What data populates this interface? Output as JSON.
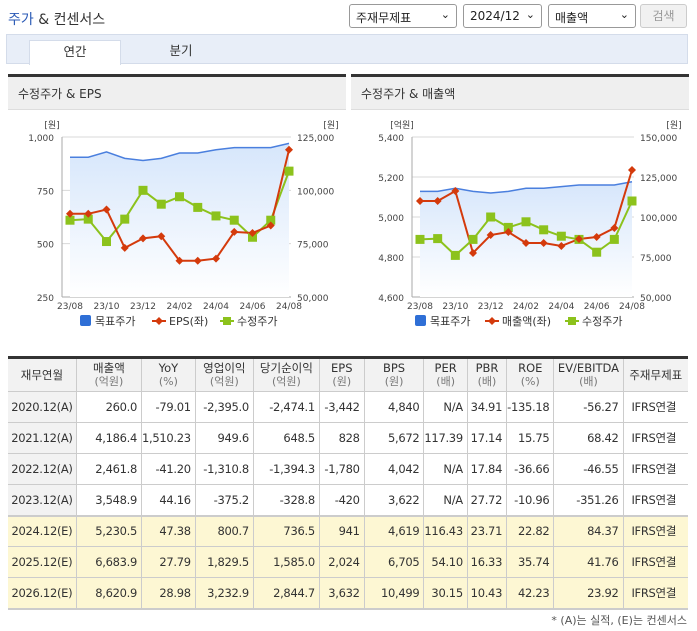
{
  "header": {
    "title_a": "주가",
    "title_b": " & 컨센서스",
    "select1": "주재무제표",
    "select2": "2024/12",
    "select3": "매출액",
    "search": "검색"
  },
  "tabs": [
    {
      "label": "연간",
      "active": true
    },
    {
      "label": "분기",
      "active": false
    }
  ],
  "colors": {
    "target": "#2f6fd6",
    "red": "#d43a0c",
    "green": "#8cc21c",
    "accent": "#2a59b5",
    "estimate_row": "#fdf7d3"
  },
  "chart_data": [
    {
      "type": "line",
      "title": "수정주가 & EPS",
      "x": [
        "23/08",
        "23/09",
        "23/10",
        "23/11",
        "23/12",
        "24/01",
        "24/02",
        "24/03",
        "24/04",
        "24/05",
        "24/06",
        "24/07",
        "24/08"
      ],
      "x_tick_labels": [
        "23/08",
        "23/10",
        "23/12",
        "24/02",
        "24/04",
        "24/06",
        "24/08"
      ],
      "left_unit": "[원]",
      "right_unit": "[원]",
      "ylim_left": [
        250,
        1000
      ],
      "yticks_left": [
        "1,000",
        "750",
        "500",
        "250"
      ],
      "ylim_right": [
        50000,
        125000
      ],
      "yticks_right": [
        "125,000",
        "100,000",
        "75,000",
        "50,000"
      ],
      "grid": true,
      "legend": "bottom",
      "series": [
        {
          "name": "목표주가",
          "axis": "right",
          "type": "area",
          "values": [
            115500,
            115500,
            118000,
            115000,
            114000,
            115000,
            117500,
            117500,
            119000,
            120000,
            120000,
            120000,
            122000
          ]
        },
        {
          "name": "EPS(좌)",
          "axis": "left",
          "values": [
            640,
            640,
            660,
            480,
            525,
            535,
            420,
            420,
            430,
            555,
            550,
            585,
            940
          ]
        },
        {
          "name": "수정주가",
          "axis": "right",
          "values": [
            86000,
            86500,
            76000,
            86500,
            100000,
            93500,
            97000,
            92000,
            88000,
            86000,
            78000,
            86000,
            109000
          ]
        }
      ]
    },
    {
      "type": "line",
      "title": "수정주가 & 매출액",
      "x": [
        "23/08",
        "23/09",
        "23/10",
        "23/11",
        "23/12",
        "24/01",
        "24/02",
        "24/03",
        "24/04",
        "24/05",
        "24/06",
        "24/07",
        "24/08"
      ],
      "x_tick_labels": [
        "23/08",
        "23/10",
        "23/12",
        "24/02",
        "24/04",
        "24/06",
        "24/08"
      ],
      "left_unit": "[억원]",
      "right_unit": "[원]",
      "ylim_left": [
        4600,
        5400
      ],
      "yticks_left": [
        "5,400",
        "5,200",
        "5,000",
        "4,800",
        "4,600"
      ],
      "ylim_right": [
        50000,
        150000
      ],
      "yticks_right": [
        "150,000",
        "125,000",
        "100,000",
        "75,000",
        "50,000"
      ],
      "grid": true,
      "legend": "bottom",
      "series": [
        {
          "name": "목표주가",
          "axis": "right",
          "type": "area",
          "values": [
            116000,
            116000,
            118000,
            116000,
            115000,
            116000,
            118000,
            118000,
            119000,
            120000,
            120000,
            120000,
            122000
          ]
        },
        {
          "name": "매출액(좌)",
          "axis": "left",
          "values": [
            5080,
            5080,
            5130,
            4820,
            4910,
            4925,
            4870,
            4870,
            4855,
            4890,
            4900,
            4945,
            5235
          ]
        },
        {
          "name": "수정주가",
          "axis": "right",
          "values": [
            86000,
            86500,
            76000,
            86000,
            100000,
            93500,
            97000,
            92000,
            88000,
            86000,
            78000,
            86000,
            110000
          ]
        }
      ]
    }
  ],
  "table": {
    "headers": [
      [
        "재무연월",
        ""
      ],
      [
        "매출액",
        "(억원)"
      ],
      [
        "YoY",
        "(%)"
      ],
      [
        "영업이익",
        "(억원)"
      ],
      [
        "당기순이익",
        "(억원)"
      ],
      [
        "EPS",
        "(원)"
      ],
      [
        "BPS",
        "(원)"
      ],
      [
        "PER",
        "(배)"
      ],
      [
        "PBR",
        "(배)"
      ],
      [
        "ROE",
        "(%)"
      ],
      [
        "EV/EBITDA",
        "(배)"
      ],
      [
        "주재무제표",
        ""
      ]
    ],
    "rows": [
      [
        "2020.12(A)",
        "260.0",
        "-79.01",
        "-2,395.0",
        "-2,474.1",
        "-3,442",
        "4,840",
        "N/A",
        "34.91",
        "-135.18",
        "-56.27",
        "IFRS연결"
      ],
      [
        "2021.12(A)",
        "4,186.4",
        "1,510.23",
        "949.6",
        "648.5",
        "828",
        "5,672",
        "117.39",
        "17.14",
        "15.75",
        "68.42",
        "IFRS연결"
      ],
      [
        "2022.12(A)",
        "2,461.8",
        "-41.20",
        "-1,310.8",
        "-1,394.3",
        "-1,780",
        "4,042",
        "N/A",
        "17.84",
        "-36.66",
        "-46.55",
        "IFRS연결"
      ],
      [
        "2023.12(A)",
        "3,548.9",
        "44.16",
        "-375.2",
        "-328.8",
        "-420",
        "3,622",
        "N/A",
        "27.72",
        "-10.96",
        "-351.26",
        "IFRS연결"
      ],
      [
        "2024.12(E)",
        "5,230.5",
        "47.38",
        "800.7",
        "736.5",
        "941",
        "4,619",
        "116.43",
        "23.71",
        "22.82",
        "84.37",
        "IFRS연결"
      ],
      [
        "2025.12(E)",
        "6,683.9",
        "27.79",
        "1,829.5",
        "1,585.0",
        "2,024",
        "6,705",
        "54.10",
        "16.33",
        "35.74",
        "41.76",
        "IFRS연결"
      ],
      [
        "2026.12(E)",
        "8,620.9",
        "28.98",
        "3,232.9",
        "2,844.7",
        "3,632",
        "10,499",
        "30.15",
        "10.43",
        "42.23",
        "23.92",
        "IFRS연결"
      ]
    ]
  },
  "footnote": "* (A)는 실적, (E)는 컨센서스"
}
